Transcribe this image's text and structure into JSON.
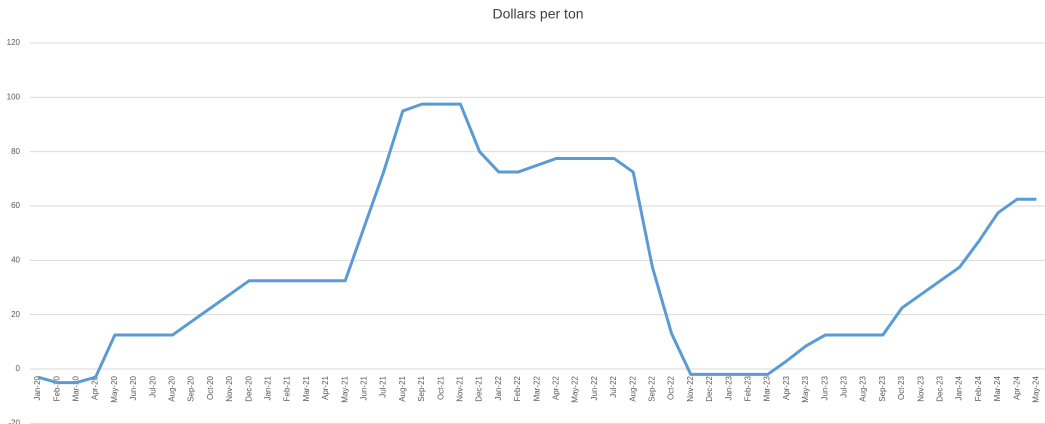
{
  "chart_data": {
    "type": "line",
    "title": "Dollars per ton",
    "categories": [
      "Jan-20",
      "Feb-20",
      "Mar-20",
      "Apr-20",
      "May-20",
      "Jun-20",
      "Jul-20",
      "Aug-20",
      "Sep-20",
      "Oct-20",
      "Nov-20",
      "Dec-20",
      "Jan-21",
      "Feb-21",
      "Mar-21",
      "Apr-21",
      "May-21",
      "Jun-21",
      "Jul-21",
      "Aug-21",
      "Sep-21",
      "Oct-21",
      "Nov-21",
      "Dec-21",
      "Jan-22",
      "Feb-22",
      "Mar-22",
      "Apr-22",
      "May-22",
      "Jun-22",
      "Jul-22",
      "Aug-22",
      "Sep-22",
      "Oct-22",
      "Nov-22",
      "Dec-22",
      "Jan-23",
      "Feb-23",
      "Mar-23",
      "Apr-23",
      "May-23",
      "Jun-23",
      "Jul-23",
      "Aug-23",
      "Sep-23",
      "Oct-23",
      "Nov-23",
      "Dec-23",
      "Jan-24",
      "Feb-24",
      "Mar-24",
      "Apr-24",
      "May-24"
    ],
    "series": [
      {
        "name": "Dollars per ton",
        "color": "#5b9bd5",
        "values": [
          -3,
          -5,
          -5,
          -3,
          12.5,
          12.5,
          12.5,
          12.5,
          17.5,
          22.5,
          27.5,
          32.5,
          32.5,
          32.5,
          32.5,
          32.5,
          32.5,
          52.5,
          72.5,
          95,
          97.5,
          97.5,
          97.5,
          80,
          72.5,
          72.5,
          75,
          77.5,
          77.5,
          77.5,
          77.5,
          72.5,
          37.5,
          13,
          -2,
          -2,
          -2,
          -2,
          -2,
          3,
          8.5,
          12.5,
          12.5,
          12.5,
          12.5,
          22.5,
          27.5,
          32.5,
          37.5,
          47,
          57.5,
          62.5,
          62.5
        ]
      }
    ],
    "ylim": [
      -20,
      120
    ],
    "yticks": [
      -20,
      0,
      20,
      40,
      60,
      80,
      100,
      120
    ],
    "grid": true
  }
}
